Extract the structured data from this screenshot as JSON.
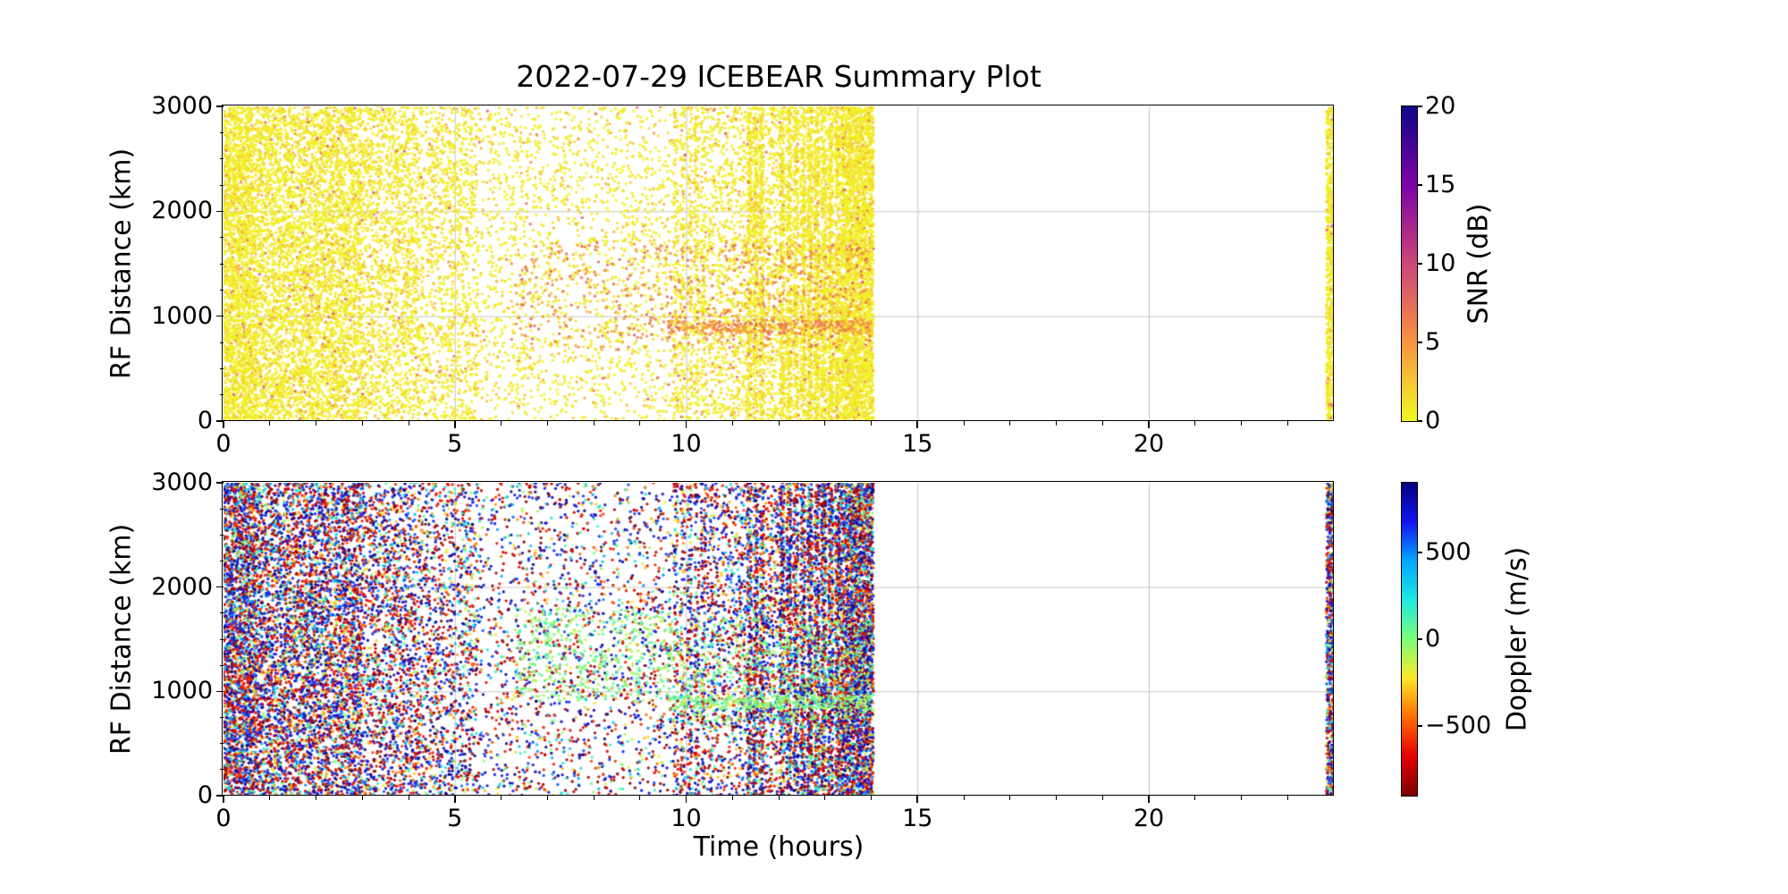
{
  "figure": {
    "title": "2022-07-29 ICEBEAR Summary Plot",
    "background": "#ffffff"
  },
  "chart_data": [
    {
      "type": "scatter",
      "panel": "snr",
      "title": "2022-07-29 ICEBEAR Summary Plot",
      "xlabel": "",
      "ylabel": "RF Distance (km)",
      "xlim": [
        0,
        24
      ],
      "ylim": [
        0,
        3000
      ],
      "xticks": [
        0,
        5,
        10,
        15,
        20
      ],
      "xtick_labels": [
        "0",
        "5",
        "10",
        "15",
        "20"
      ],
      "yticks": [
        0,
        1000,
        2000,
        3000
      ],
      "ytick_labels": [
        "0",
        "1000",
        "2000",
        "3000"
      ],
      "x_minor_step": 1,
      "y_minor_step": 250,
      "grid": true,
      "grid_color": "#c6c6c6",
      "marker_radius_px": 1.7,
      "seed": 1337,
      "colorbar": {
        "label": "SNR (dB)",
        "range": [
          0,
          20
        ],
        "ticks": [
          0,
          5,
          10,
          15,
          20
        ],
        "tick_labels": [
          "0",
          "5",
          "10",
          "15",
          "20"
        ],
        "colormap": "plasma_r",
        "stops": [
          "#f0f921",
          "#f89441",
          "#cc4778",
          "#7e03a8",
          "#0d0887"
        ]
      },
      "bands": [
        {
          "x0": 0.0,
          "x1": 0.7,
          "n": 2200,
          "k": 0,
          "y0": 0,
          "y1": 3000,
          "profile": "default"
        },
        {
          "x0": 0.7,
          "x1": 3.0,
          "n": 4600,
          "k": 0,
          "y0": 0,
          "y1": 3000,
          "profile": "default"
        },
        {
          "x0": 3.0,
          "x1": 4.3,
          "n": 1600,
          "k": 0,
          "y0": 0,
          "y1": 3000,
          "profile": "default"
        },
        {
          "x0": 4.3,
          "x1": 5.5,
          "n": 1100,
          "k": 0,
          "y0": 0,
          "y1": 3000,
          "profile": "default"
        },
        {
          "x0": 5.5,
          "x1": 9.7,
          "n": 1700,
          "k": 0,
          "y0": 0,
          "y1": 3000,
          "profile": "default"
        },
        {
          "x0": 9.7,
          "x1": 10.45,
          "n": 800,
          "k": 5,
          "y0": 0,
          "y1": 3000,
          "profile": "default"
        },
        {
          "x0": 10.45,
          "x1": 11.3,
          "n": 750,
          "k": 0,
          "y0": 0,
          "y1": 3000,
          "profile": "default"
        },
        {
          "x0": 11.3,
          "x1": 11.7,
          "n": 1000,
          "k": 3,
          "y0": 0,
          "y1": 3000,
          "profile": "default"
        },
        {
          "x0": 11.7,
          "x1": 12.0,
          "n": 330,
          "k": 0,
          "y0": 0,
          "y1": 3000,
          "profile": "default"
        },
        {
          "x0": 12.0,
          "x1": 12.6,
          "n": 1400,
          "k": 4,
          "y0": 0,
          "y1": 3000,
          "profile": "default"
        },
        {
          "x0": 12.6,
          "x1": 13.35,
          "n": 2100,
          "k": 5,
          "y0": 0,
          "y1": 3000,
          "profile": "default"
        },
        {
          "x0": 13.35,
          "x1": 14.05,
          "n": 2900,
          "k": 0,
          "y0": 0,
          "y1": 3000,
          "profile": "default"
        },
        {
          "x0": 23.84,
          "x1": 24.0,
          "n": 650,
          "k": 0,
          "y0": 0,
          "y1": 3000,
          "profile": "default"
        },
        {
          "x0": 6.3,
          "x1": 9.7,
          "n": 240,
          "k": 0,
          "y0": 700,
          "y1": 1700,
          "profile": "hot"
        },
        {
          "x0": 9.7,
          "x1": 14.0,
          "n": 420,
          "k": 0,
          "y0": 700,
          "y1": 1700,
          "profile": "hot"
        },
        {
          "x0": 9.6,
          "x1": 14.0,
          "n": 260,
          "k": 0,
          "y0": 830,
          "y1": 960,
          "profile": "hot"
        }
      ]
    },
    {
      "type": "scatter",
      "panel": "doppler",
      "title": "",
      "xlabel": "Time (hours)",
      "ylabel": "RF Distance (km)",
      "xlim": [
        0,
        24
      ],
      "ylim": [
        0,
        3000
      ],
      "xticks": [
        0,
        5,
        10,
        15,
        20
      ],
      "xtick_labels": [
        "0",
        "5",
        "10",
        "15",
        "20"
      ],
      "yticks": [
        0,
        1000,
        2000,
        3000
      ],
      "ytick_labels": [
        "0",
        "1000",
        "2000",
        "3000"
      ],
      "x_minor_step": 1,
      "y_minor_step": 250,
      "grid": true,
      "grid_color": "#c6c6c6",
      "marker_radius_px": 1.7,
      "seed": 7331,
      "colorbar": {
        "label": "Doppler (m/s)",
        "range": [
          -900,
          900
        ],
        "ticks": [
          -500,
          0,
          500
        ],
        "tick_labels": [
          "−500",
          "0",
          "500"
        ],
        "colormap": "jet_r",
        "stops": [
          "#7f0000",
          "#e60000",
          "#ff6e00",
          "#ffe727",
          "#7dff7a",
          "#1fe8e0",
          "#00a8ff",
          "#1414f0",
          "#00007f"
        ]
      },
      "bands": [
        {
          "x0": 0.0,
          "x1": 0.7,
          "n": 2200,
          "k": 0,
          "y0": 0,
          "y1": 3000,
          "profile": "default"
        },
        {
          "x0": 0.7,
          "x1": 3.0,
          "n": 4600,
          "k": 0,
          "y0": 0,
          "y1": 3000,
          "profile": "default"
        },
        {
          "x0": 3.0,
          "x1": 4.3,
          "n": 1600,
          "k": 0,
          "y0": 0,
          "y1": 3000,
          "profile": "default"
        },
        {
          "x0": 4.3,
          "x1": 5.5,
          "n": 1100,
          "k": 0,
          "y0": 0,
          "y1": 3000,
          "profile": "default"
        },
        {
          "x0": 5.5,
          "x1": 9.7,
          "n": 1700,
          "k": 0,
          "y0": 0,
          "y1": 3000,
          "profile": "default"
        },
        {
          "x0": 9.7,
          "x1": 10.45,
          "n": 800,
          "k": 5,
          "y0": 0,
          "y1": 3000,
          "profile": "default"
        },
        {
          "x0": 10.45,
          "x1": 11.3,
          "n": 750,
          "k": 0,
          "y0": 0,
          "y1": 3000,
          "profile": "default"
        },
        {
          "x0": 11.3,
          "x1": 11.7,
          "n": 1000,
          "k": 3,
          "y0": 0,
          "y1": 3000,
          "profile": "default"
        },
        {
          "x0": 11.7,
          "x1": 12.0,
          "n": 330,
          "k": 0,
          "y0": 0,
          "y1": 3000,
          "profile": "default"
        },
        {
          "x0": 12.0,
          "x1": 12.6,
          "n": 1400,
          "k": 4,
          "y0": 0,
          "y1": 3000,
          "profile": "default"
        },
        {
          "x0": 12.6,
          "x1": 13.35,
          "n": 2100,
          "k": 5,
          "y0": 0,
          "y1": 3000,
          "profile": "default"
        },
        {
          "x0": 13.35,
          "x1": 14.05,
          "n": 2900,
          "k": 0,
          "y0": 0,
          "y1": 3000,
          "profile": "default"
        },
        {
          "x0": 23.84,
          "x1": 24.0,
          "n": 650,
          "k": 0,
          "y0": 0,
          "y1": 3000,
          "profile": "default"
        },
        {
          "x0": 6.3,
          "x1": 9.7,
          "n": 450,
          "k": 0,
          "y0": 900,
          "y1": 1800,
          "profile": "zero"
        },
        {
          "x0": 9.7,
          "x1": 14.0,
          "n": 420,
          "k": 0,
          "y0": 700,
          "y1": 1700,
          "profile": "zero"
        },
        {
          "x0": 9.6,
          "x1": 14.0,
          "n": 260,
          "k": 0,
          "y0": 830,
          "y1": 960,
          "profile": "zero"
        }
      ]
    }
  ]
}
